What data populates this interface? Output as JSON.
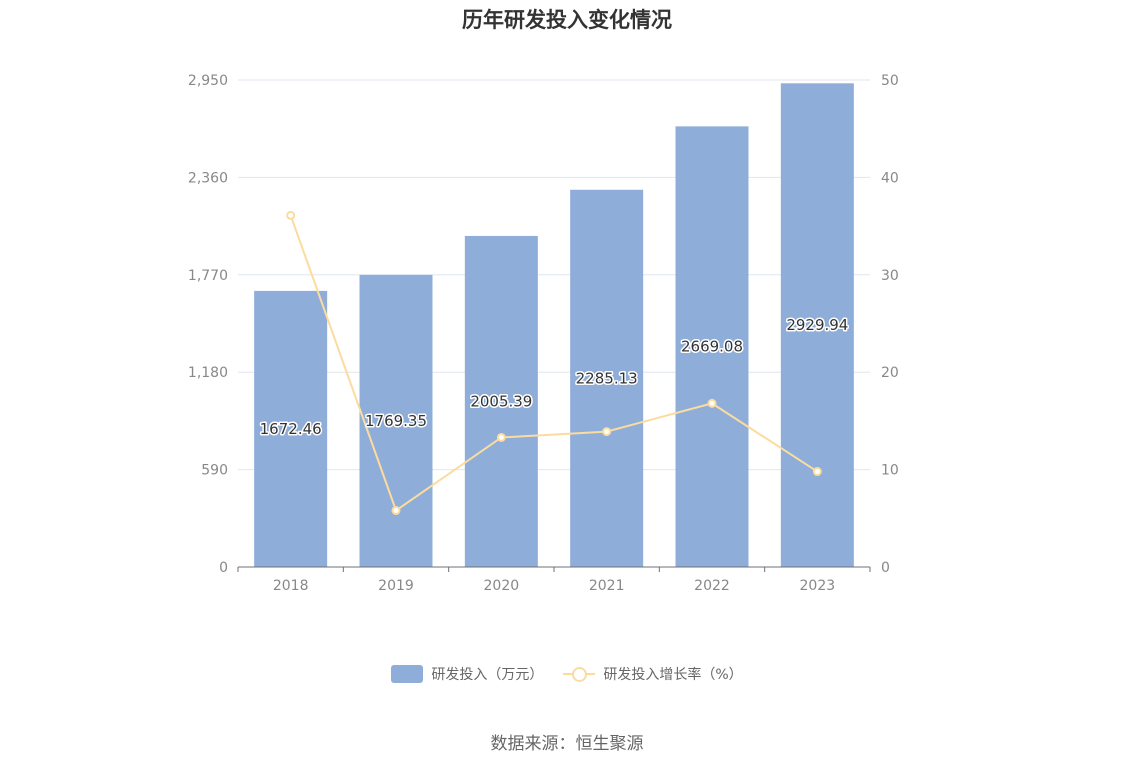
{
  "chart_data": {
    "type": "bar",
    "title": "历年研发投入变化情况",
    "categories": [
      "2018",
      "2019",
      "2020",
      "2021",
      "2022",
      "2023"
    ],
    "y_left": {
      "min": 0,
      "max": 2950,
      "ticks": [
        "0",
        "590",
        "1,180",
        "1,770",
        "2,360",
        "2,950"
      ]
    },
    "y_right": {
      "min": 0,
      "max": 50,
      "ticks": [
        "0",
        "10",
        "20",
        "30",
        "40",
        "50"
      ]
    },
    "series": [
      {
        "name": "研发投入（万元）",
        "type": "bar",
        "axis": "left",
        "color": "#8eadd9",
        "values": [
          1672.46,
          1769.35,
          2005.39,
          2285.13,
          2669.08,
          2929.94
        ],
        "labels": [
          "1672.46",
          "1769.35",
          "2005.39",
          "2285.13",
          "2669.08",
          "2929.94"
        ]
      },
      {
        "name": "研发投入增长率（%）",
        "type": "line",
        "axis": "right",
        "color": "#fbdc9e",
        "values": [
          36.1,
          5.8,
          13.3,
          13.9,
          16.8,
          9.8
        ]
      }
    ],
    "grid": true,
    "legend_position": "bottom"
  },
  "source": "数据来源：恒生聚源"
}
